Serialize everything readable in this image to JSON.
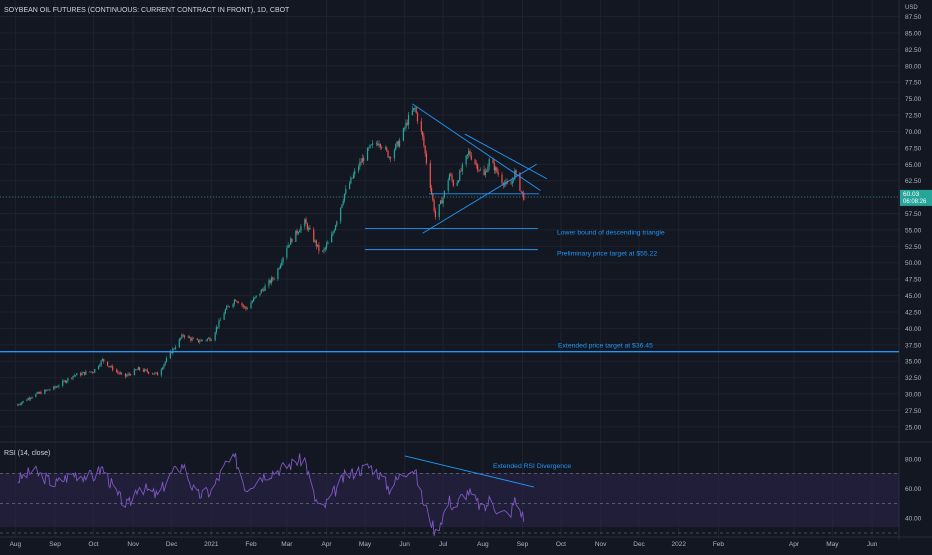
{
  "chart_data": {
    "type": "candlestick",
    "title": "SOYBEAN OIL FUTURES (CONTINUOUS: CURRENT CONTRACT IN FRONT), 1D, CBOT",
    "currency_label": "USD",
    "y_ticks": [
      "87.50",
      "85.00",
      "82.50",
      "80.00",
      "77.50",
      "75.00",
      "72.50",
      "70.00",
      "67.50",
      "65.00",
      "62.50",
      "60.00",
      "57.50",
      "55.00",
      "52.50",
      "50.00",
      "47.50",
      "45.00",
      "42.50",
      "40.00",
      "37.50",
      "35.00",
      "32.50",
      "30.00",
      "27.50",
      "25.00"
    ],
    "ylim": [
      23.0,
      88.5
    ],
    "x_ticks": [
      "Aug",
      "Sep",
      "Oct",
      "Nov",
      "Dec",
      "2021",
      "Feb",
      "Mar",
      "Apr",
      "May",
      "Jun",
      "Jul",
      "Aug",
      "Sep",
      "Oct",
      "Nov",
      "Dec",
      "2022",
      "Feb",
      "Apr",
      "May",
      "Jun"
    ],
    "current_price": "60.03",
    "countdown": "06:08:26",
    "price_path": [
      [
        "2020-08-01",
        28.2
      ],
      [
        "2020-08-15",
        29.8
      ],
      [
        "2020-09-01",
        31.0
      ],
      [
        "2020-09-15",
        32.8
      ],
      [
        "2020-10-01",
        33.5
      ],
      [
        "2020-10-08",
        35.2
      ],
      [
        "2020-10-15",
        34.0
      ],
      [
        "2020-10-25",
        32.6
      ],
      [
        "2020-11-05",
        33.8
      ],
      [
        "2020-11-20",
        33.0
      ],
      [
        "2020-12-01",
        36.5
      ],
      [
        "2020-12-10",
        39.0
      ],
      [
        "2020-12-20",
        38.0
      ],
      [
        "2021-01-01",
        38.5
      ],
      [
        "2021-01-12",
        42.8
      ],
      [
        "2021-01-20",
        44.5
      ],
      [
        "2021-01-28",
        43.0
      ],
      [
        "2021-02-08",
        45.5
      ],
      [
        "2021-02-20",
        48.0
      ],
      [
        "2021-03-01",
        52.5
      ],
      [
        "2021-03-10",
        55.0
      ],
      [
        "2021-03-15",
        56.2
      ],
      [
        "2021-03-22",
        53.5
      ],
      [
        "2021-03-28",
        51.2
      ],
      [
        "2021-04-05",
        54.0
      ],
      [
        "2021-04-15",
        60.5
      ],
      [
        "2021-04-25",
        64.5
      ],
      [
        "2021-05-05",
        67.5
      ],
      [
        "2021-05-12",
        68.5
      ],
      [
        "2021-05-20",
        66.2
      ],
      [
        "2021-05-28",
        68.5
      ],
      [
        "2021-06-05",
        72.5
      ],
      [
        "2021-06-09",
        73.5
      ],
      [
        "2021-06-15",
        69.0
      ],
      [
        "2021-06-20",
        63.0
      ],
      [
        "2021-06-25",
        57.0
      ],
      [
        "2021-07-01",
        60.0
      ],
      [
        "2021-07-06",
        63.5
      ],
      [
        "2021-07-10",
        61.5
      ],
      [
        "2021-07-15",
        64.0
      ],
      [
        "2021-07-21",
        66.8
      ],
      [
        "2021-07-26",
        65.2
      ],
      [
        "2021-08-02",
        63.2
      ],
      [
        "2021-08-06",
        65.5
      ],
      [
        "2021-08-10",
        64.5
      ],
      [
        "2021-08-16",
        62.5
      ],
      [
        "2021-08-22",
        61.3
      ],
      [
        "2021-08-26",
        63.8
      ],
      [
        "2021-08-31",
        60.8
      ],
      [
        "2021-09-02",
        60.03
      ]
    ],
    "annotations": [
      {
        "text": "Lower bound of descending triangle",
        "price": 55.2
      },
      {
        "text": "Preliminary price target at $55.22",
        "price": 52.0
      },
      {
        "text": "Extended price target at $36.45",
        "price": 36.45
      }
    ],
    "trendlines": [
      {
        "from": [
          "2021-06-07",
          74.2
        ],
        "to": [
          "2021-09-15",
          61.0
        ]
      },
      {
        "from": [
          "2021-07-18",
          69.6
        ],
        "to": [
          "2021-09-20",
          62.8
        ]
      },
      {
        "from": [
          "2021-06-15",
          54.5
        ],
        "to": [
          "2021-09-12",
          65.0
        ]
      },
      {
        "from": [
          "2021-06-20",
          60.5
        ],
        "to": [
          "2021-09-14",
          60.5
        ]
      }
    ],
    "rsi": {
      "label": "RSI (14, close)",
      "y_ticks": [
        "80.00",
        "60.00",
        "40.00"
      ],
      "ylim": [
        30,
        88
      ],
      "upper": 70,
      "lower": 30,
      "annotation": "Extended RSI Divergence",
      "divergence_line": {
        "from": [
          "2021-06-01",
          82
        ],
        "to": [
          "2021-09-10",
          61
        ]
      },
      "path": [
        [
          "2020-08-01",
          65
        ],
        [
          "2020-08-15",
          72
        ],
        [
          "2020-09-01",
          63
        ],
        [
          "2020-09-15",
          70
        ],
        [
          "2020-10-01",
          68
        ],
        [
          "2020-10-08",
          74
        ],
        [
          "2020-10-20",
          55
        ],
        [
          "2020-10-28",
          48
        ],
        [
          "2020-11-05",
          62
        ],
        [
          "2020-11-20",
          55
        ],
        [
          "2020-12-01",
          70
        ],
        [
          "2020-12-10",
          76
        ],
        [
          "2020-12-20",
          55
        ],
        [
          "2021-01-01",
          58
        ],
        [
          "2021-01-12",
          76
        ],
        [
          "2021-01-20",
          80
        ],
        [
          "2021-01-28",
          60
        ],
        [
          "2021-02-08",
          68
        ],
        [
          "2021-02-20",
          72
        ],
        [
          "2021-03-01",
          75
        ],
        [
          "2021-03-10",
          79
        ],
        [
          "2021-03-15",
          80
        ],
        [
          "2021-03-22",
          55
        ],
        [
          "2021-03-28",
          45
        ],
        [
          "2021-04-05",
          55
        ],
        [
          "2021-04-15",
          68
        ],
        [
          "2021-04-25",
          72
        ],
        [
          "2021-05-05",
          75
        ],
        [
          "2021-05-12",
          70
        ],
        [
          "2021-05-20",
          60
        ],
        [
          "2021-05-28",
          68
        ],
        [
          "2021-06-05",
          74
        ],
        [
          "2021-06-09",
          72
        ],
        [
          "2021-06-15",
          52
        ],
        [
          "2021-06-20",
          42
        ],
        [
          "2021-06-25",
          30
        ],
        [
          "2021-07-01",
          42
        ],
        [
          "2021-07-06",
          52
        ],
        [
          "2021-07-10",
          46
        ],
        [
          "2021-07-15",
          54
        ],
        [
          "2021-07-21",
          58
        ],
        [
          "2021-07-26",
          52
        ],
        [
          "2021-08-02",
          45
        ],
        [
          "2021-08-06",
          52
        ],
        [
          "2021-08-10",
          48
        ],
        [
          "2021-08-16",
          44
        ],
        [
          "2021-08-22",
          42
        ],
        [
          "2021-08-26",
          52
        ],
        [
          "2021-08-31",
          44
        ],
        [
          "2021-09-02",
          40
        ]
      ]
    }
  }
}
